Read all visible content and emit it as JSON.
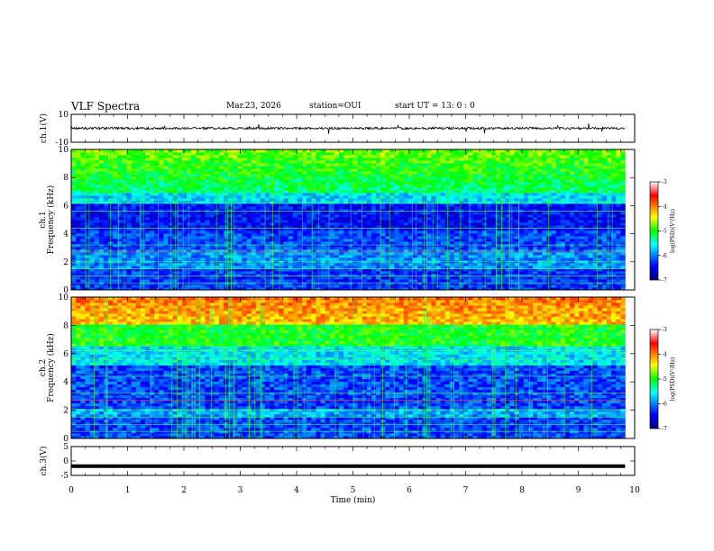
{
  "header": {
    "title": "VLF Spectra",
    "date": "Mar.23, 2026",
    "station": "station=OUI",
    "start": "start  UT =   13: 0  : 0"
  },
  "chart_data": [
    {
      "type": "line",
      "name": "ch1-waveform",
      "ylabel": "ch.1(V)",
      "ylim": [
        -10,
        10
      ],
      "ytick_labels": [
        "10",
        "-10"
      ],
      "baseline": 0,
      "x_range": [
        0,
        9.83
      ]
    },
    {
      "type": "heatmap",
      "name": "ch1-spectrogram",
      "ylabel_top": "ch.1",
      "ylabel": "Frequency  (kHz)",
      "ylim": [
        0,
        10
      ],
      "ytick_labels": [
        "0",
        "2",
        "4",
        "6",
        "8",
        "10"
      ],
      "x_range": [
        0,
        9.83
      ],
      "colorbar": {
        "label": "log(PSD)(V²/Hz)",
        "range": [
          -7,
          -3
        ],
        "tick_labels": [
          "-3",
          "-4",
          "-5",
          "-6",
          "-7"
        ]
      }
    },
    {
      "type": "heatmap",
      "name": "ch2-spectrogram",
      "ylabel_top": "ch.2",
      "ylabel": "Frequency  (kHz)",
      "ylim": [
        0,
        10
      ],
      "ytick_labels": [
        "0",
        "2",
        "4",
        "6",
        "8",
        "10"
      ],
      "x_range": [
        0,
        9.83
      ],
      "colorbar": {
        "label": "log(PSD)(V²/Hz)",
        "range": [
          -7,
          -3
        ],
        "tick_labels": [
          "-3",
          "-4",
          "-5",
          "-6",
          "-7"
        ]
      }
    },
    {
      "type": "line",
      "name": "ch3-level",
      "ylabel": "ch.3(V)",
      "ylim": [
        -5,
        5
      ],
      "ytick_labels": [
        "5",
        "0",
        "-5"
      ],
      "level": -1.8,
      "x_range": [
        0,
        9.83
      ]
    }
  ],
  "xaxis": {
    "label": "Time  (min)",
    "range": [
      0,
      10
    ],
    "tick_labels": [
      "0",
      "1",
      "2",
      "3",
      "4",
      "5",
      "6",
      "7",
      "8",
      "9",
      "10"
    ]
  }
}
